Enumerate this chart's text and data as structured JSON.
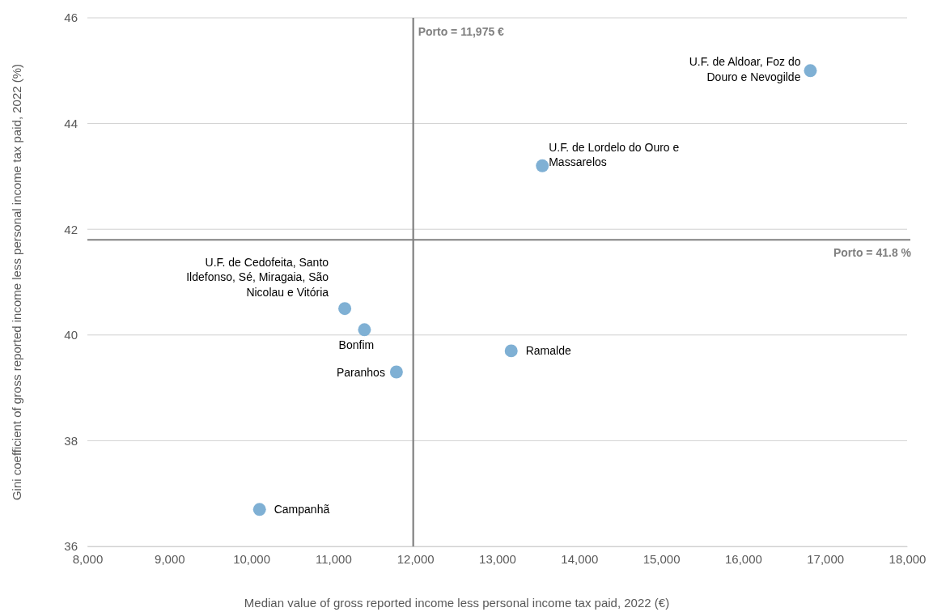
{
  "chart_data": {
    "type": "scatter",
    "xlabel": "Median value of gross reported income less personal income tax paid, 2022 (€)",
    "ylabel": "Gini coefficient of gross reported income less personal income tax paid, 2022 (%)",
    "x": [
      16820,
      13550,
      11140,
      11380,
      11770,
      13170,
      10100
    ],
    "series": [
      {
        "color": "#7fb0d4",
        "values": [
          45.0,
          43.2,
          40.5,
          40.1,
          39.3,
          39.7,
          36.7
        ]
      }
    ],
    "xlim": [
      8000,
      18000
    ],
    "xticks": [
      {
        "value": 8000,
        "label": "8,000"
      },
      {
        "value": 9000,
        "label": "9,000"
      },
      {
        "value": 10000,
        "label": "10,000"
      },
      {
        "value": 11000,
        "label": "11,000"
      },
      {
        "value": 12000,
        "label": "12,000"
      },
      {
        "value": 13000,
        "label": "13,000"
      },
      {
        "value": 14000,
        "label": "14,000"
      },
      {
        "value": 15000,
        "label": "15,000"
      },
      {
        "value": 16000,
        "label": "16,000"
      },
      {
        "value": 17000,
        "label": "17,000"
      },
      {
        "value": 18000,
        "label": "18,000"
      }
    ],
    "ylim": [
      36,
      46
    ],
    "yticks": [
      36,
      38,
      40,
      42,
      44,
      46
    ],
    "grid": "y",
    "marker": "circle",
    "ref_lines": [
      {
        "axis": "x",
        "value": 11975,
        "label": "Porto = 11,975 €",
        "color": "#808080"
      },
      {
        "axis": "y",
        "value": 41.8,
        "label": "Porto = 41.8 %",
        "color": "#808080"
      }
    ],
    "annotations": [
      {
        "text": "U.F. de Aldoar, Foz do Douro e Nevogilde",
        "x": 16820,
        "y": 45.0
      },
      {
        "text": "U.F. de Lordelo do Ouro e Massarelos",
        "x": 13550,
        "y": 43.2
      },
      {
        "text": "U.F. de Cedofeita, Santo Ildefonso, Sé, Miragaia, São Nicolau e Vitória",
        "x": 11140,
        "y": 40.5
      },
      {
        "text": "Bonfim",
        "x": 11380,
        "y": 40.1
      },
      {
        "text": "Paranhos",
        "x": 11770,
        "y": 39.3
      },
      {
        "text": "Ramalde",
        "x": 13170,
        "y": 39.7
      },
      {
        "text": "Campanhã",
        "x": 10100,
        "y": 36.7
      }
    ]
  }
}
